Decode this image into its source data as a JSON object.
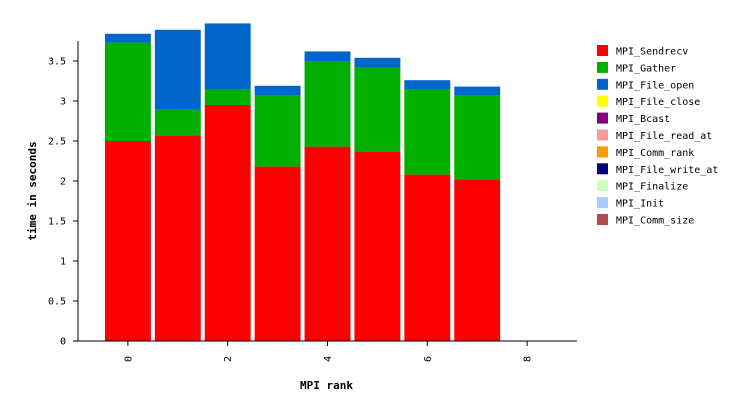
{
  "chart_data": {
    "type": "bar",
    "stacked": true,
    "title": "",
    "xlabel": "MPI rank",
    "ylabel": "time in seconds",
    "xlim": [
      -1,
      9
    ],
    "ylim": [
      0,
      3.75
    ],
    "xticks": [
      0,
      2,
      4,
      6,
      8
    ],
    "yticks": [
      0,
      0.5,
      1,
      1.5,
      2,
      2.5,
      3,
      3.5
    ],
    "grid": false,
    "legend_position": "right",
    "x": [
      0,
      1,
      2,
      3,
      4,
      5,
      6,
      7
    ],
    "series": [
      {
        "name": "MPI_Sendrecv",
        "color": "#ff0000",
        "values": [
          2.5,
          2.57,
          2.95,
          2.18,
          2.43,
          2.37,
          2.08,
          2.02
        ]
      },
      {
        "name": "MPI_Gather",
        "color": "#00b000",
        "values": [
          1.23,
          0.32,
          0.2,
          0.89,
          1.06,
          1.05,
          1.07,
          1.05
        ]
      },
      {
        "name": "MPI_File_open",
        "color": "#0066cc",
        "values": [
          0.11,
          1.0,
          0.82,
          0.12,
          0.13,
          0.12,
          0.11,
          0.11
        ]
      },
      {
        "name": "MPI_File_close",
        "color": "#ffff00",
        "values": [
          0,
          0,
          0,
          0,
          0,
          0,
          0,
          0
        ]
      },
      {
        "name": "MPI_Bcast",
        "color": "#800080",
        "values": [
          0,
          0,
          0,
          0,
          0,
          0,
          0,
          0
        ]
      },
      {
        "name": "MPI_File_read_at",
        "color": "#ff9999",
        "values": [
          0,
          0,
          0,
          0,
          0,
          0,
          0,
          0
        ]
      },
      {
        "name": "MPI_Comm_rank",
        "color": "#ff9900",
        "values": [
          0,
          0,
          0,
          0,
          0,
          0,
          0,
          0
        ]
      },
      {
        "name": "MPI_File_write_at",
        "color": "#000080",
        "values": [
          0,
          0,
          0,
          0,
          0,
          0,
          0,
          0
        ]
      },
      {
        "name": "MPI_Finalize",
        "color": "#ccffbb",
        "values": [
          0,
          0,
          0,
          0,
          0,
          0,
          0,
          0
        ]
      },
      {
        "name": "MPI_Init",
        "color": "#aaccff",
        "values": [
          0,
          0,
          0,
          0,
          0,
          0,
          0,
          0
        ]
      },
      {
        "name": "MPI_Comm_size",
        "color": "#b04c4c",
        "values": [
          0,
          0,
          0,
          0,
          0,
          0,
          0,
          0
        ]
      }
    ]
  }
}
